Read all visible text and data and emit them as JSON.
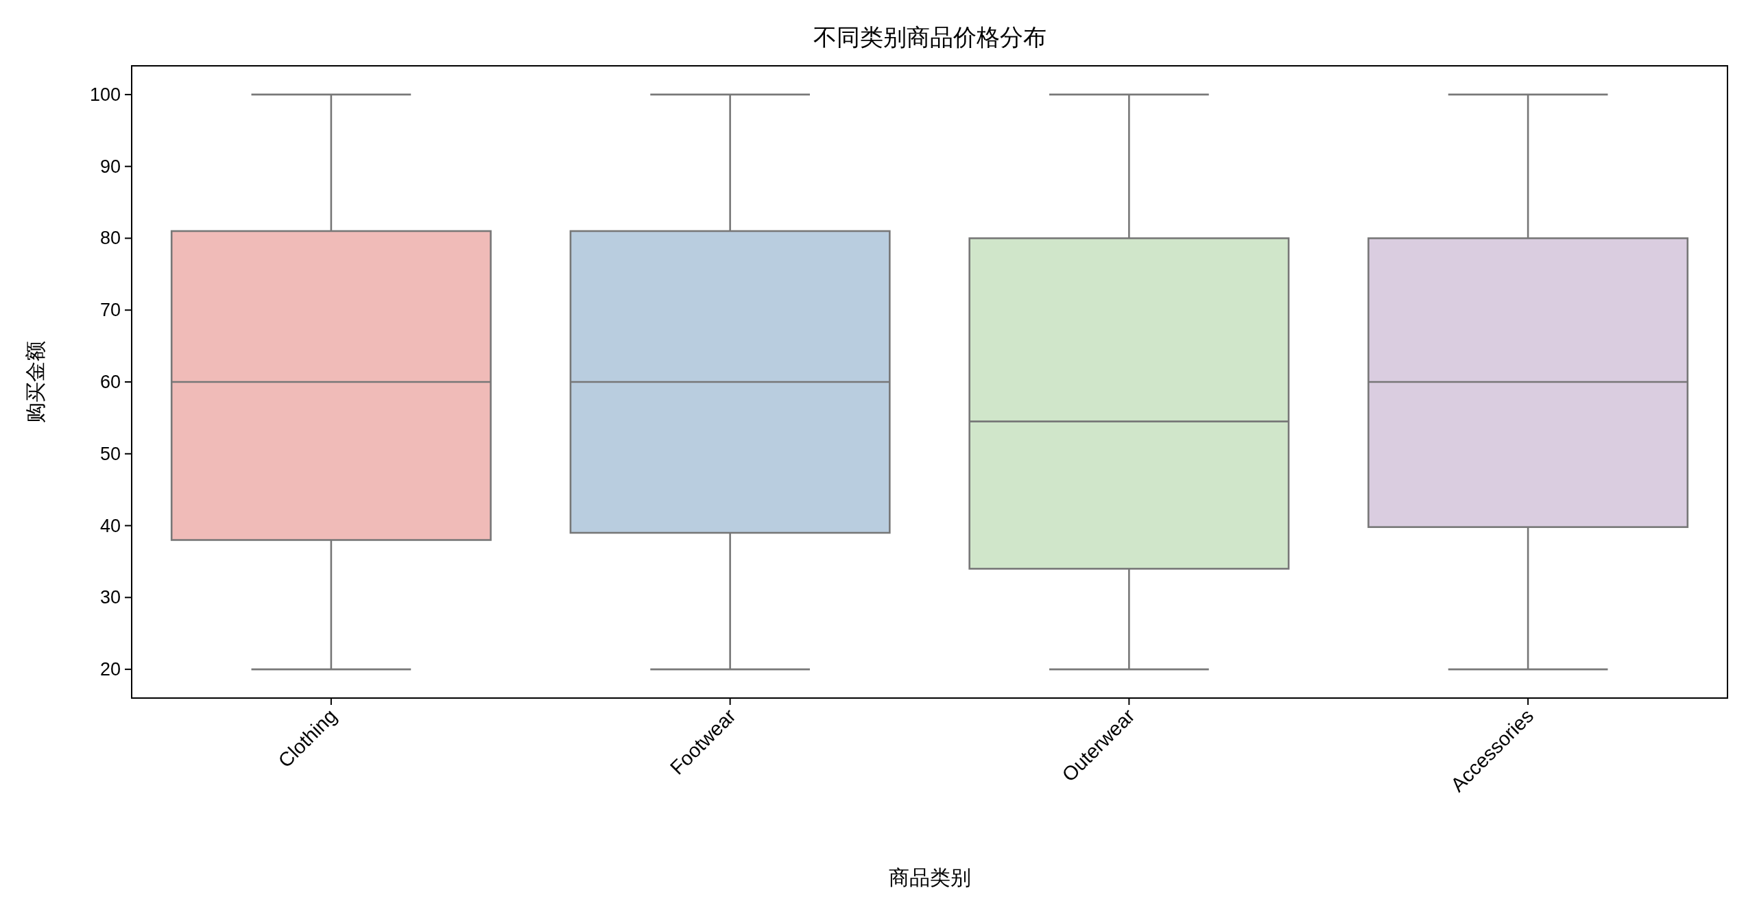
{
  "chart_data": {
    "type": "box",
    "title": "不同类别商品价格分布",
    "xlabel": "商品类别",
    "ylabel": "购买金额",
    "categories": [
      "Clothing",
      "Footwear",
      "Outerwear",
      "Accessories"
    ],
    "boxes": [
      {
        "low": 20,
        "q1": 38,
        "median": 60,
        "q3": 81,
        "high": 100
      },
      {
        "low": 20,
        "q1": 39,
        "median": 60,
        "q3": 81,
        "high": 100
      },
      {
        "low": 20,
        "q1": 34,
        "median": 54.5,
        "q3": 80,
        "high": 100
      },
      {
        "low": 20,
        "q1": 39.8,
        "median": 60,
        "q3": 80,
        "high": 100
      }
    ],
    "colors": [
      "#f0bbb8",
      "#b9cddf",
      "#d0e6ca",
      "#dacde0"
    ],
    "ylim": [
      16,
      104
    ],
    "yticks": [
      20,
      30,
      40,
      50,
      60,
      70,
      80,
      90,
      100
    ]
  }
}
